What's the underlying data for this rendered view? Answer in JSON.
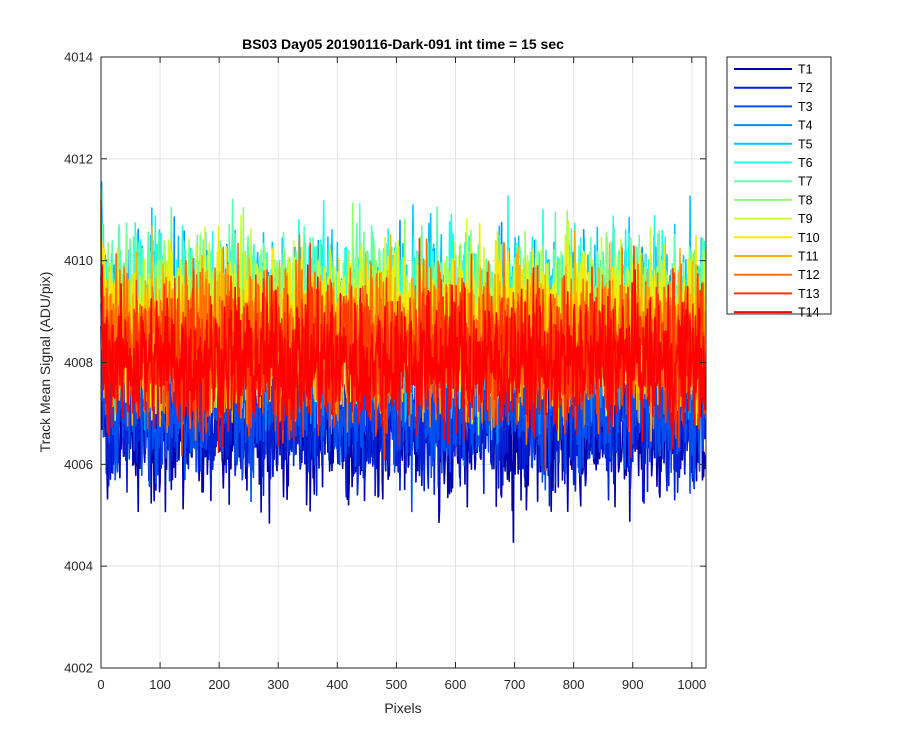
{
  "chart_data": {
    "type": "line",
    "title": "BS03 Day05 20190116-Dark-091 int time = 15 sec",
    "xlabel": "Pixels",
    "ylabel": "Track Mean Signal (ADU/pix)",
    "xlim": [
      0,
      1024
    ],
    "ylim": [
      4002,
      4014
    ],
    "x_ticks": [
      0,
      100,
      200,
      300,
      400,
      500,
      600,
      700,
      800,
      900,
      1000
    ],
    "y_ticks": [
      4002,
      4004,
      4006,
      4008,
      4010,
      4012,
      4014
    ],
    "grid": true,
    "legend_position": "outside-top-right",
    "series": [
      {
        "name": "T1",
        "color": "#0000a8",
        "center": 4006.6,
        "spread": 1.1
      },
      {
        "name": "T2",
        "color": "#0022d6",
        "center": 4006.9,
        "spread": 1.1
      },
      {
        "name": "T3",
        "color": "#0050f0",
        "center": 4007.2,
        "spread": 1.1
      },
      {
        "name": "T4",
        "color": "#0090ff",
        "center": 4008.6,
        "spread": 1.3
      },
      {
        "name": "T5",
        "color": "#00c8ff",
        "center": 4008.9,
        "spread": 1.3
      },
      {
        "name": "T6",
        "color": "#20ffe8",
        "center": 4009.0,
        "spread": 1.3
      },
      {
        "name": "T7",
        "color": "#60ffb0",
        "center": 4009.1,
        "spread": 1.2
      },
      {
        "name": "T8",
        "color": "#90ff70",
        "center": 4008.9,
        "spread": 1.2
      },
      {
        "name": "T9",
        "color": "#d0ff30",
        "center": 4008.8,
        "spread": 1.2
      },
      {
        "name": "T10",
        "color": "#ffe800",
        "center": 4008.7,
        "spread": 1.2
      },
      {
        "name": "T11",
        "color": "#ffb000",
        "center": 4008.5,
        "spread": 1.2
      },
      {
        "name": "T12",
        "color": "#ff7000",
        "center": 4008.4,
        "spread": 1.2
      },
      {
        "name": "T13",
        "color": "#ff3800",
        "center": 4008.2,
        "spread": 1.2
      },
      {
        "name": "T14",
        "color": "#ff0000",
        "center": 4008.0,
        "spread": 1.1
      }
    ]
  }
}
